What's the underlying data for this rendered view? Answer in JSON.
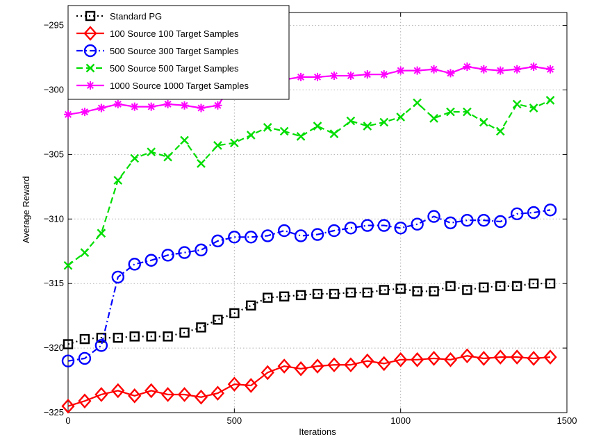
{
  "chart_data": {
    "type": "line",
    "title": "",
    "xlabel": "Iterations",
    "ylabel": "Average Reward",
    "xlim": [
      0,
      1500
    ],
    "ylim": [
      -325,
      -294
    ],
    "xticks": [
      0,
      500,
      1000,
      1500
    ],
    "yticks": [
      -325,
      -320,
      -315,
      -310,
      -305,
      -300,
      -295
    ],
    "grid": true,
    "legend_position": "top-left",
    "x": [
      0,
      50,
      100,
      150,
      200,
      250,
      300,
      350,
      400,
      450,
      500,
      550,
      600,
      650,
      700,
      750,
      800,
      850,
      900,
      950,
      1000,
      1050,
      1100,
      1150,
      1200,
      1250,
      1300,
      1350,
      1400,
      1450
    ],
    "series": [
      {
        "name": "Standard PG",
        "color": "#000000",
        "line_style": "dotted",
        "marker": "square",
        "values": [
          -319.7,
          -319.3,
          -319.2,
          -319.2,
          -319.1,
          -319.1,
          -319.1,
          -318.8,
          -318.4,
          -317.8,
          -317.3,
          -316.7,
          -316.1,
          -316.0,
          -315.9,
          -315.8,
          -315.8,
          -315.7,
          -315.7,
          -315.5,
          -315.4,
          -315.6,
          -315.6,
          -315.2,
          -315.5,
          -315.3,
          -315.2,
          -315.2,
          -315.0,
          -315.0
        ]
      },
      {
        "name": "100 Source 100 Target Samples",
        "color": "#ff0000",
        "line_style": "solid",
        "marker": "diamond",
        "values": [
          -324.5,
          -324.1,
          -323.6,
          -323.3,
          -323.7,
          -323.3,
          -323.6,
          -323.6,
          -323.8,
          -323.5,
          -322.8,
          -322.9,
          -321.9,
          -321.4,
          -321.6,
          -321.4,
          -321.3,
          -321.3,
          -321.0,
          -321.2,
          -320.9,
          -320.9,
          -320.8,
          -320.9,
          -320.6,
          -320.8,
          -320.7,
          -320.7,
          -320.8,
          -320.7
        ]
      },
      {
        "name": "500 Source 300 Target Samples",
        "color": "#0000ff",
        "line_style": "dashdot",
        "marker": "circle",
        "values": [
          -321.0,
          -320.8,
          -319.8,
          -314.5,
          -313.5,
          -313.2,
          -312.8,
          -312.6,
          -312.4,
          -311.7,
          -311.4,
          -311.4,
          -311.3,
          -310.9,
          -311.3,
          -311.2,
          -310.9,
          -310.7,
          -310.5,
          -310.5,
          -310.7,
          -310.4,
          -309.8,
          -310.3,
          -310.1,
          -310.1,
          -310.2,
          -309.6,
          -309.5,
          -309.3
        ]
      },
      {
        "name": "500 Source 500 Target Samples",
        "color": "#00dd00",
        "line_style": "dashed",
        "marker": "x",
        "values": [
          -313.6,
          -312.6,
          -311.1,
          -307.0,
          -305.3,
          -304.8,
          -305.2,
          -303.9,
          -305.7,
          -304.3,
          -304.1,
          -303.5,
          -302.9,
          -303.2,
          -303.6,
          -302.8,
          -303.4,
          -302.4,
          -302.8,
          -302.5,
          -302.1,
          -301.0,
          -302.2,
          -301.7,
          -301.7,
          -302.5,
          -303.2,
          -301.1,
          -301.4,
          -300.8
        ]
      },
      {
        "name": "1000 Source 1000 Target Samples",
        "color": "#ff00ff",
        "line_style": "solid",
        "marker": "asterisk",
        "values": [
          -301.9,
          -301.7,
          -301.4,
          -301.1,
          -301.3,
          -301.3,
          -301.1,
          -301.2,
          -301.4,
          -301.2,
          -299.4,
          -299.4,
          -299.2,
          -299.2,
          -299.0,
          -299.0,
          -298.9,
          -298.9,
          -298.8,
          -298.8,
          -298.5,
          -298.5,
          -298.4,
          -298.7,
          -298.2,
          -298.4,
          -298.5,
          -298.4,
          -298.2,
          -298.4
        ]
      }
    ]
  }
}
